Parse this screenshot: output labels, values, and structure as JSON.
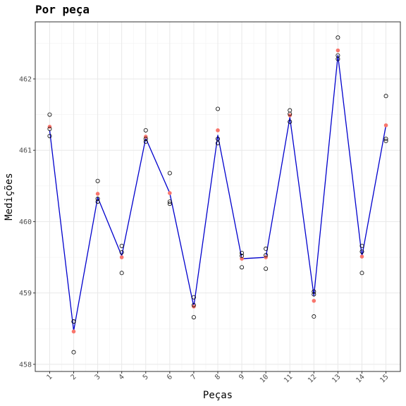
{
  "chart_data": {
    "type": "scatter",
    "title": "Por peça",
    "xlabel": "Peças",
    "ylabel": "Medições",
    "categories": [
      "1",
      "2",
      "3",
      "4",
      "5",
      "6",
      "7",
      "8",
      "9",
      "10",
      "11",
      "12",
      "13",
      "14",
      "15"
    ],
    "ylim": [
      457.9,
      462.8
    ],
    "yticks": [
      458,
      459,
      460,
      461,
      462
    ],
    "grid": true,
    "series": [
      {
        "kind": "points",
        "color": "#000000",
        "points": [
          [
            1,
            461.5
          ],
          [
            1,
            461.3
          ],
          [
            1,
            461.2
          ],
          [
            2,
            458.6
          ],
          [
            2,
            458.6
          ],
          [
            2,
            458.17
          ],
          [
            3,
            460.57
          ],
          [
            3,
            460.32
          ],
          [
            3,
            460.28
          ],
          [
            4,
            459.66
          ],
          [
            4,
            459.57
          ],
          [
            4,
            459.28
          ],
          [
            5,
            461.28
          ],
          [
            5,
            461.16
          ],
          [
            5,
            461.12
          ],
          [
            6,
            460.68
          ],
          [
            6,
            460.28
          ],
          [
            6,
            460.25
          ],
          [
            7,
            458.94
          ],
          [
            7,
            458.83
          ],
          [
            7,
            458.66
          ],
          [
            8,
            461.58
          ],
          [
            8,
            461.16
          ],
          [
            8,
            461.1
          ],
          [
            9,
            459.56
          ],
          [
            9,
            459.52
          ],
          [
            9,
            459.36
          ],
          [
            10,
            459.62
          ],
          [
            10,
            459.53
          ],
          [
            10,
            459.34
          ],
          [
            11,
            461.56
          ],
          [
            11,
            461.51
          ],
          [
            11,
            461.4
          ],
          [
            12,
            459.02
          ],
          [
            12,
            458.98
          ],
          [
            12,
            458.67
          ],
          [
            13,
            462.58
          ],
          [
            13,
            462.33
          ],
          [
            13,
            462.28
          ],
          [
            14,
            459.66
          ],
          [
            14,
            459.58
          ],
          [
            14,
            459.28
          ],
          [
            15,
            461.76
          ],
          [
            15,
            461.16
          ],
          [
            15,
            461.13
          ]
        ]
      },
      {
        "kind": "means",
        "color": "#f8766d",
        "values": [
          461.33,
          458.46,
          460.39,
          459.5,
          461.19,
          460.4,
          458.81,
          461.28,
          459.48,
          459.5,
          461.49,
          458.89,
          462.4,
          459.51,
          461.35
        ]
      },
      {
        "kind": "line",
        "color": "#0000cd",
        "values": [
          461.28,
          458.47,
          460.34,
          459.52,
          461.17,
          460.4,
          458.81,
          461.21,
          459.48,
          459.5,
          461.46,
          458.96,
          462.33,
          459.51,
          461.35
        ]
      }
    ]
  }
}
